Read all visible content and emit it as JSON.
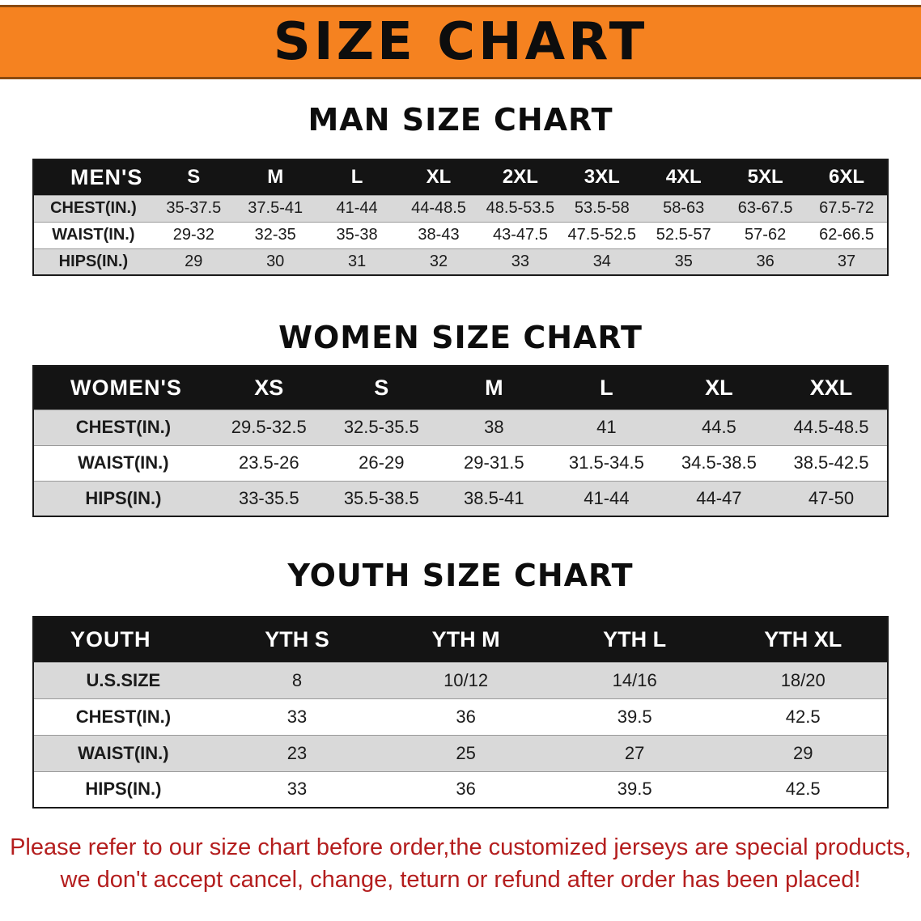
{
  "banner": {
    "title": "SIZE CHART"
  },
  "colors": {
    "banner_bg": "#f58220",
    "header_bg": "#141414",
    "row_alt_bg": "#d9d9d9",
    "footnote_color": "#b41e1e"
  },
  "sections": [
    {
      "heading": "MAN SIZE CHART"
    },
    {
      "heading": "WOMEN SIZE CHART"
    },
    {
      "heading": "YOUTH SIZE CHART"
    }
  ],
  "footnote": {
    "line1": "Please refer to our size chart before order,the customized jerseys are special products,",
    "line2": "we don't accept cancel, change, teturn or refund after order has been placed!"
  },
  "chart_data": [
    {
      "type": "table",
      "title": "MAN SIZE CHART",
      "columns": [
        "MEN'S",
        "S",
        "M",
        "L",
        "XL",
        "2XL",
        "3XL",
        "4XL",
        "5XL",
        "6XL"
      ],
      "rows": [
        [
          "CHEST(IN.)",
          "35-37.5",
          "37.5-41",
          "41-44",
          "44-48.5",
          "48.5-53.5",
          "53.5-58",
          "58-63",
          "63-67.5",
          "67.5-72"
        ],
        [
          "WAIST(IN.)",
          "29-32",
          "32-35",
          "35-38",
          "38-43",
          "43-47.5",
          "47.5-52.5",
          "52.5-57",
          "57-62",
          "62-66.5"
        ],
        [
          "HIPS(IN.)",
          "29",
          "30",
          "31",
          "32",
          "33",
          "34",
          "35",
          "36",
          "37"
        ]
      ]
    },
    {
      "type": "table",
      "title": "WOMEN SIZE CHART",
      "columns": [
        "WOMEN'S",
        "XS",
        "S",
        "M",
        "L",
        "XL",
        "XXL"
      ],
      "rows": [
        [
          "CHEST(IN.)",
          "29.5-32.5",
          "32.5-35.5",
          "38",
          "41",
          "44.5",
          "44.5-48.5"
        ],
        [
          "WAIST(IN.)",
          "23.5-26",
          "26-29",
          "29-31.5",
          "31.5-34.5",
          "34.5-38.5",
          "38.5-42.5"
        ],
        [
          "HIPS(IN.)",
          "33-35.5",
          "35.5-38.5",
          "38.5-41",
          "41-44",
          "44-47",
          "47-50"
        ]
      ]
    },
    {
      "type": "table",
      "title": "YOUTH SIZE CHART",
      "columns": [
        "YOUTH",
        "YTH S",
        "YTH M",
        "YTH L",
        "YTH XL"
      ],
      "rows": [
        [
          "U.S.SIZE",
          "8",
          "10/12",
          "14/16",
          "18/20"
        ],
        [
          "CHEST(IN.)",
          "33",
          "36",
          "39.5",
          "42.5"
        ],
        [
          "WAIST(IN.)",
          "23",
          "25",
          "27",
          "29"
        ],
        [
          "HIPS(IN.)",
          "33",
          "36",
          "39.5",
          "42.5"
        ]
      ]
    }
  ]
}
